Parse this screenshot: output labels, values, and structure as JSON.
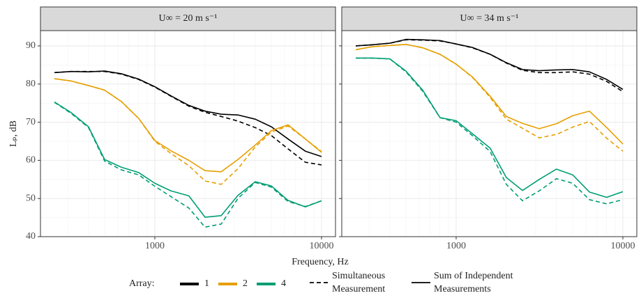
{
  "shared": {
    "xlabel": "Frequency, Hz",
    "ylabel": "Lₚ, dB",
    "legend": {
      "title": "Array:",
      "colors": [
        {
          "label": "1",
          "color": "#000000"
        },
        {
          "label": "2",
          "color": "#E69F00"
        },
        {
          "label": "4",
          "color": "#009E73"
        }
      ],
      "linetypes": [
        {
          "lines": [
            "Simultaneous",
            "Measurement"
          ],
          "dashed": true
        },
        {
          "lines": [
            "Sum of Independent",
            "Measurements"
          ],
          "dashed": false
        }
      ]
    }
  },
  "chart_data": [
    {
      "type": "line",
      "title": "U∞ = 20 m s⁻¹",
      "log_x": true,
      "grid": true,
      "x": [
        250,
        315,
        400,
        500,
        630,
        800,
        1000,
        1250,
        1600,
        2000,
        2500,
        3150,
        4000,
        5000,
        6300,
        8000,
        10000
      ],
      "xlim": [
        206,
        12130
      ],
      "xticks": [
        1000,
        10000
      ],
      "x_minor_grid": [
        300,
        400,
        500,
        600,
        700,
        800,
        900,
        2000,
        3000,
        4000,
        5000,
        6000,
        7000,
        8000,
        9000
      ],
      "ylim": [
        40,
        94
      ],
      "yticks": [
        40,
        50,
        60,
        70,
        80,
        90
      ],
      "y_minor_grid": [
        45,
        55,
        65,
        75,
        85
      ],
      "series": [
        {
          "color": "#000000",
          "dashed": true,
          "values": [
            83.0,
            83.3,
            83.3,
            83.3,
            82.6,
            81.2,
            79.2,
            76.8,
            74.2,
            72.6,
            71.5,
            70.3,
            68.6,
            66.5,
            63.0,
            59.5,
            58.8
          ]
        },
        {
          "color": "#E69F00",
          "dashed": true,
          "values": [
            81.4,
            80.8,
            79.6,
            78.4,
            75.4,
            71.0,
            65.0,
            61.8,
            58.6,
            54.6,
            53.7,
            57.8,
            63.5,
            67.4,
            69.0,
            65.6,
            62.3
          ]
        },
        {
          "color": "#009E73",
          "dashed": true,
          "values": [
            75.2,
            72.3,
            68.6,
            59.8,
            57.5,
            56.2,
            53.2,
            50.5,
            47.5,
            42.5,
            43.3,
            50.0,
            54.2,
            53.0,
            49.2,
            47.9,
            49.4
          ]
        },
        {
          "color": "#000000",
          "dashed": false,
          "values": [
            83.0,
            83.3,
            83.2,
            83.4,
            82.7,
            81.3,
            79.3,
            76.9,
            74.4,
            72.9,
            72.1,
            71.9,
            70.8,
            68.8,
            65.6,
            62.4,
            61.0
          ]
        },
        {
          "color": "#E69F00",
          "dashed": false,
          "values": [
            81.4,
            80.8,
            79.6,
            78.4,
            75.4,
            71.0,
            65.2,
            62.5,
            60.0,
            57.3,
            57.0,
            60.2,
            64.0,
            67.8,
            69.3,
            65.6,
            62.1
          ]
        },
        {
          "color": "#009E73",
          "dashed": false,
          "values": [
            75.3,
            72.5,
            68.8,
            60.2,
            58.2,
            56.8,
            54.0,
            52.0,
            50.7,
            45.1,
            45.5,
            50.8,
            54.4,
            53.3,
            49.5,
            47.8,
            49.4
          ]
        }
      ]
    },
    {
      "type": "line",
      "title": "U∞ = 34 m s⁻¹",
      "log_x": true,
      "grid": true,
      "x": [
        250,
        315,
        400,
        500,
        630,
        800,
        1000,
        1250,
        1600,
        2000,
        2500,
        3150,
        4000,
        5000,
        6300,
        8000,
        10000
      ],
      "xlim": [
        206,
        12130
      ],
      "xticks": [
        1000,
        10000
      ],
      "x_minor_grid": [
        300,
        400,
        500,
        600,
        700,
        800,
        900,
        2000,
        3000,
        4000,
        5000,
        6000,
        7000,
        8000,
        9000
      ],
      "ylim": [
        40,
        94
      ],
      "yticks": [
        40,
        50,
        60,
        70,
        80,
        90
      ],
      "y_minor_grid": [
        45,
        55,
        65,
        75,
        85
      ],
      "series": [
        {
          "color": "#000000",
          "dashed": true,
          "values": [
            90.0,
            90.3,
            90.7,
            91.6,
            91.5,
            91.3,
            90.5,
            89.5,
            87.8,
            85.5,
            83.6,
            83.0,
            83.0,
            83.2,
            82.6,
            80.7,
            78.0
          ]
        },
        {
          "color": "#E69F00",
          "dashed": true,
          "values": [
            89.0,
            89.8,
            90.1,
            90.4,
            89.5,
            87.8,
            85.2,
            81.8,
            76.5,
            70.8,
            68.4,
            65.9,
            66.8,
            68.7,
            70.2,
            65.8,
            62.4
          ]
        },
        {
          "color": "#009E73",
          "dashed": true,
          "values": [
            86.8,
            86.8,
            86.6,
            83.2,
            78.1,
            71.2,
            70.0,
            66.5,
            62.3,
            53.7,
            49.4,
            52.0,
            55.2,
            54.0,
            49.7,
            48.6,
            49.7
          ]
        },
        {
          "color": "#000000",
          "dashed": false,
          "values": [
            90.0,
            90.3,
            90.7,
            91.7,
            91.6,
            91.4,
            90.5,
            89.6,
            87.8,
            85.6,
            83.8,
            83.5,
            83.7,
            83.8,
            83.2,
            81.2,
            78.6
          ]
        },
        {
          "color": "#E69F00",
          "dashed": false,
          "values": [
            89.0,
            89.8,
            90.1,
            90.4,
            89.5,
            87.8,
            85.2,
            81.9,
            76.8,
            71.5,
            69.7,
            68.3,
            69.6,
            71.7,
            72.9,
            68.6,
            64.3
          ]
        },
        {
          "color": "#009E73",
          "dashed": false,
          "values": [
            86.8,
            86.8,
            86.6,
            83.4,
            78.4,
            71.2,
            70.4,
            67.0,
            63.2,
            55.5,
            52.1,
            55.0,
            57.7,
            56.2,
            51.7,
            50.3,
            51.8
          ]
        }
      ]
    }
  ]
}
